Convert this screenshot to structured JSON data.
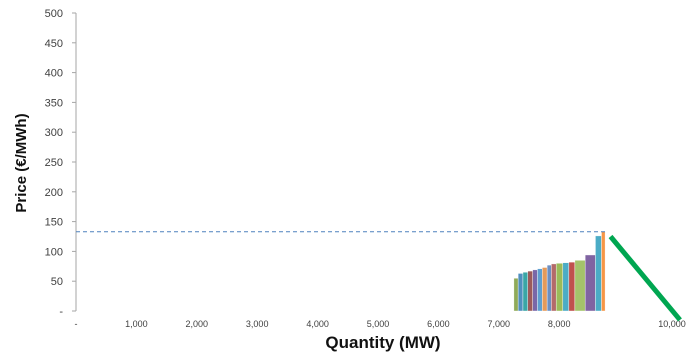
{
  "chart_data": {
    "type": "bar",
    "title": "",
    "xlabel": "Quantity (MW)",
    "ylabel": "Price (€/MWh)",
    "xlim": [
      0,
      10000
    ],
    "ylim": [
      0,
      500
    ],
    "grid": false,
    "x_ticks": [
      "-",
      "1,000",
      "2,000",
      "3,000",
      "4,000",
      "5,000",
      "6,000",
      "7,000",
      "8,000",
      "10,000"
    ],
    "y_ticks": [
      "-",
      "50",
      "100",
      "150",
      "200",
      "250",
      "300",
      "350",
      "400",
      "450",
      "500"
    ],
    "y_tick_values": [
      0,
      50,
      100,
      150,
      200,
      250,
      300,
      350,
      400,
      450,
      500
    ],
    "clearing_price": 133,
    "supply_blocks": [
      {
        "x0": 7250,
        "x1": 7320,
        "price": 55,
        "color": "#8faa59"
      },
      {
        "x0": 7320,
        "x1": 7400,
        "price": 63,
        "color": "#4f8fbd"
      },
      {
        "x0": 7400,
        "x1": 7480,
        "price": 65,
        "color": "#3aa6a6"
      },
      {
        "x0": 7480,
        "x1": 7560,
        "price": 67,
        "color": "#9c5a5a"
      },
      {
        "x0": 7560,
        "x1": 7640,
        "price": 69,
        "color": "#7a67a8"
      },
      {
        "x0": 7640,
        "x1": 7720,
        "price": 71,
        "color": "#5e9fd0"
      },
      {
        "x0": 7720,
        "x1": 7800,
        "price": 73,
        "color": "#e59a5a"
      },
      {
        "x0": 7800,
        "x1": 7870,
        "price": 77,
        "color": "#6c8fc2"
      },
      {
        "x0": 7870,
        "x1": 7950,
        "price": 79,
        "color": "#b36a6a"
      },
      {
        "x0": 7950,
        "x1": 8060,
        "price": 80,
        "color": "#9bbb59"
      },
      {
        "x0": 8060,
        "x1": 8160,
        "price": 81,
        "color": "#4bacc6"
      },
      {
        "x0": 8160,
        "x1": 8260,
        "price": 82,
        "color": "#c0504d"
      },
      {
        "x0": 8260,
        "x1": 8430,
        "price": 85,
        "color": "#a4c36a"
      },
      {
        "x0": 8430,
        "x1": 8600,
        "price": 94,
        "color": "#8064a2"
      },
      {
        "x0": 8600,
        "x1": 8700,
        "price": 126,
        "color": "#4bacc6"
      },
      {
        "x0": 8700,
        "x1": 8760,
        "price": 133,
        "color": "#f79646"
      }
    ],
    "demand_line": {
      "points": [
        [
          8850,
          125
        ],
        [
          10000,
          -15
        ]
      ],
      "color": "#00a651"
    },
    "colors": {
      "axis": "#a6a6a6",
      "dashed": "#4f81bd"
    }
  }
}
